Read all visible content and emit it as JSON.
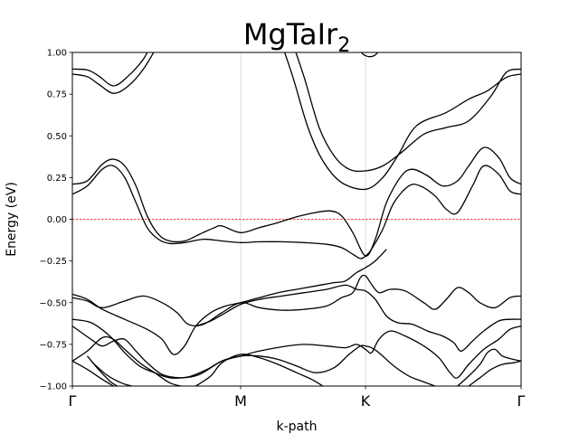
{
  "chart_data": {
    "type": "line",
    "title": "MgTaIr",
    "title_subscript": "2",
    "xlabel": "k-path",
    "ylabel": "Energy (eV)",
    "ylim": [
      -1.0,
      1.0
    ],
    "xlim": [
      0,
      6
    ],
    "yticks": [
      -1.0,
      -0.75,
      -0.5,
      -0.25,
      0.0,
      0.25,
      0.5,
      0.75,
      1.0
    ],
    "ytick_labels": [
      "−1.00",
      "−0.75",
      "−0.50",
      "−0.25",
      "0.00",
      "0.25",
      "0.50",
      "0.75",
      "1.00"
    ],
    "kpoints": [
      {
        "label": "Γ",
        "x": 0
      },
      {
        "label": "M",
        "x": 2.25
      },
      {
        "label": "K",
        "x": 3.92
      },
      {
        "label": "Γ",
        "x": 6
      }
    ],
    "fermi_level": 0.0,
    "grid": false,
    "line_color": "#000000",
    "fermi_color": "#ff0000",
    "vline_color": "#d0d0d0",
    "bands": [
      {
        "points": [
          [
            0,
            0.9
          ],
          [
            0.2,
            0.895
          ],
          [
            0.35,
            0.86
          ],
          [
            0.55,
            0.8
          ],
          [
            0.75,
            0.86
          ],
          [
            0.95,
            0.96
          ],
          [
            1.05,
            1.05
          ]
        ]
      },
      {
        "points": [
          [
            0,
            0.87
          ],
          [
            0.2,
            0.855
          ],
          [
            0.35,
            0.81
          ],
          [
            0.55,
            0.755
          ],
          [
            0.75,
            0.8
          ],
          [
            0.95,
            0.9
          ],
          [
            1.15,
            1.05
          ]
        ]
      },
      {
        "points": [
          [
            2.95,
            1.05
          ],
          [
            3.1,
            0.85
          ],
          [
            3.3,
            0.55
          ],
          [
            3.5,
            0.38
          ],
          [
            3.7,
            0.3
          ],
          [
            3.92,
            0.29
          ],
          [
            4.15,
            0.32
          ],
          [
            4.4,
            0.4
          ],
          [
            4.7,
            0.51
          ],
          [
            5.0,
            0.55
          ],
          [
            5.3,
            0.59
          ],
          [
            5.6,
            0.74
          ],
          [
            5.8,
            0.88
          ],
          [
            6,
            0.9
          ]
        ]
      },
      {
        "points": [
          [
            2.8,
            1.05
          ],
          [
            2.95,
            0.85
          ],
          [
            3.15,
            0.55
          ],
          [
            3.35,
            0.35
          ],
          [
            3.6,
            0.22
          ],
          [
            3.92,
            0.18
          ],
          [
            4.15,
            0.25
          ],
          [
            4.35,
            0.38
          ],
          [
            4.6,
            0.56
          ],
          [
            5.0,
            0.64
          ],
          [
            5.3,
            0.72
          ],
          [
            5.55,
            0.77
          ],
          [
            5.8,
            0.85
          ],
          [
            6,
            0.87
          ]
        ]
      },
      {
        "points": [
          [
            3.8,
            1.03
          ],
          [
            3.92,
            0.98
          ],
          [
            4.05,
            0.985
          ],
          [
            4.15,
            1.05
          ]
        ]
      },
      {
        "points": [
          [
            0,
            0.21
          ],
          [
            0.2,
            0.23
          ],
          [
            0.4,
            0.33
          ],
          [
            0.55,
            0.36
          ],
          [
            0.7,
            0.32
          ],
          [
            0.85,
            0.2
          ],
          [
            1.0,
            0.02
          ],
          [
            1.15,
            -0.09
          ],
          [
            1.3,
            -0.13
          ],
          [
            1.5,
            -0.13
          ],
          [
            1.7,
            -0.09
          ],
          [
            1.9,
            -0.05
          ],
          [
            2.0,
            -0.04
          ],
          [
            2.25,
            -0.08
          ],
          [
            2.5,
            -0.05
          ],
          [
            2.75,
            -0.02
          ],
          [
            3.0,
            0.015
          ],
          [
            3.25,
            0.04
          ],
          [
            3.45,
            0.05
          ],
          [
            3.6,
            0.02
          ],
          [
            3.75,
            -0.08
          ],
          [
            3.92,
            -0.22
          ],
          [
            4.05,
            -0.12
          ],
          [
            4.2,
            0.1
          ],
          [
            4.4,
            0.26
          ],
          [
            4.55,
            0.3
          ],
          [
            4.75,
            0.26
          ],
          [
            4.95,
            0.2
          ],
          [
            5.15,
            0.23
          ],
          [
            5.3,
            0.32
          ],
          [
            5.5,
            0.43
          ],
          [
            5.7,
            0.37
          ],
          [
            5.85,
            0.25
          ],
          [
            6,
            0.21
          ]
        ]
      },
      {
        "points": [
          [
            0,
            0.15
          ],
          [
            0.2,
            0.2
          ],
          [
            0.4,
            0.3
          ],
          [
            0.55,
            0.32
          ],
          [
            0.7,
            0.25
          ],
          [
            0.85,
            0.1
          ],
          [
            1.0,
            -0.05
          ],
          [
            1.15,
            -0.12
          ],
          [
            1.3,
            -0.145
          ],
          [
            1.5,
            -0.14
          ],
          [
            1.75,
            -0.12
          ],
          [
            2.0,
            -0.13
          ],
          [
            2.25,
            -0.14
          ],
          [
            2.5,
            -0.135
          ],
          [
            2.8,
            -0.135
          ],
          [
            3.1,
            -0.14
          ],
          [
            3.4,
            -0.15
          ],
          [
            3.6,
            -0.17
          ],
          [
            3.75,
            -0.21
          ],
          [
            3.85,
            -0.235
          ],
          [
            3.92,
            -0.22
          ],
          [
            4.0,
            -0.18
          ],
          [
            4.15,
            -0.06
          ],
          [
            4.3,
            0.1
          ],
          [
            4.5,
            0.2
          ],
          [
            4.65,
            0.2
          ],
          [
            4.85,
            0.14
          ],
          [
            5.0,
            0.06
          ],
          [
            5.15,
            0.04
          ],
          [
            5.35,
            0.2
          ],
          [
            5.5,
            0.32
          ],
          [
            5.7,
            0.27
          ],
          [
            5.85,
            0.17
          ],
          [
            6,
            0.15
          ]
        ]
      },
      {
        "points": [
          [
            0,
            -0.45
          ],
          [
            0.2,
            -0.48
          ],
          [
            0.4,
            -0.54
          ],
          [
            0.7,
            -0.6
          ],
          [
            1.0,
            -0.66
          ],
          [
            1.2,
            -0.72
          ],
          [
            1.35,
            -0.81
          ],
          [
            1.5,
            -0.76
          ],
          [
            1.65,
            -0.64
          ],
          [
            1.85,
            -0.56
          ],
          [
            2.05,
            -0.52
          ],
          [
            2.25,
            -0.5
          ],
          [
            2.5,
            -0.47
          ],
          [
            2.75,
            -0.44
          ],
          [
            3.0,
            -0.42
          ],
          [
            3.25,
            -0.4
          ],
          [
            3.5,
            -0.38
          ],
          [
            3.65,
            -0.37
          ],
          [
            3.8,
            -0.32
          ],
          [
            3.92,
            -0.29
          ],
          [
            4.05,
            -0.25
          ],
          [
            4.2,
            -0.18
          ]
        ]
      },
      {
        "points": [
          [
            0,
            -0.47
          ],
          [
            0.2,
            -0.49
          ],
          [
            0.4,
            -0.53
          ],
          [
            0.7,
            -0.49
          ],
          [
            0.95,
            -0.46
          ],
          [
            1.2,
            -0.5
          ],
          [
            1.4,
            -0.56
          ],
          [
            1.55,
            -0.63
          ],
          [
            1.75,
            -0.63
          ],
          [
            2.0,
            -0.56
          ],
          [
            2.25,
            -0.5
          ],
          [
            2.5,
            -0.53
          ],
          [
            2.8,
            -0.545
          ],
          [
            3.1,
            -0.54
          ],
          [
            3.4,
            -0.52
          ],
          [
            3.6,
            -0.47
          ],
          [
            3.75,
            -0.44
          ],
          [
            3.85,
            -0.35
          ],
          [
            3.92,
            -0.34
          ],
          [
            4.0,
            -0.39
          ],
          [
            4.1,
            -0.44
          ],
          [
            4.25,
            -0.42
          ],
          [
            4.45,
            -0.43
          ],
          [
            4.7,
            -0.5
          ],
          [
            4.85,
            -0.54
          ],
          [
            5.0,
            -0.48
          ],
          [
            5.15,
            -0.41
          ],
          [
            5.3,
            -0.44
          ],
          [
            5.45,
            -0.5
          ],
          [
            5.65,
            -0.53
          ],
          [
            5.85,
            -0.47
          ],
          [
            6,
            -0.46
          ]
        ]
      },
      {
        "points": [
          [
            1.65,
            -0.64
          ],
          [
            1.85,
            -0.61
          ],
          [
            2.05,
            -0.56
          ],
          [
            2.25,
            -0.51
          ],
          [
            2.5,
            -0.48
          ],
          [
            2.8,
            -0.46
          ],
          [
            3.1,
            -0.44
          ],
          [
            3.4,
            -0.42
          ],
          [
            3.65,
            -0.395
          ],
          [
            3.8,
            -0.42
          ],
          [
            3.92,
            -0.43
          ],
          [
            4.05,
            -0.48
          ],
          [
            4.2,
            -0.58
          ],
          [
            4.35,
            -0.62
          ],
          [
            4.55,
            -0.63
          ],
          [
            4.75,
            -0.67
          ],
          [
            4.95,
            -0.7
          ],
          [
            5.1,
            -0.74
          ],
          [
            5.2,
            -0.79
          ],
          [
            5.35,
            -0.73
          ],
          [
            5.5,
            -0.67
          ],
          [
            5.7,
            -0.61
          ],
          [
            5.85,
            -0.6
          ],
          [
            6,
            -0.6
          ]
        ]
      },
      {
        "points": [
          [
            0,
            -0.6
          ],
          [
            0.25,
            -0.62
          ],
          [
            0.5,
            -0.7
          ],
          [
            0.7,
            -0.8
          ],
          [
            0.9,
            -0.88
          ],
          [
            1.1,
            -0.92
          ],
          [
            1.3,
            -0.95
          ],
          [
            1.55,
            -0.945
          ],
          [
            1.8,
            -0.9
          ],
          [
            2.0,
            -0.85
          ],
          [
            2.25,
            -0.82
          ],
          [
            2.5,
            -0.79
          ],
          [
            2.8,
            -0.765
          ],
          [
            3.1,
            -0.75
          ],
          [
            3.4,
            -0.76
          ],
          [
            3.65,
            -0.77
          ],
          [
            3.8,
            -0.75
          ],
          [
            3.92,
            -0.78
          ],
          [
            4.0,
            -0.8
          ],
          [
            4.1,
            -0.72
          ],
          [
            4.25,
            -0.67
          ],
          [
            4.45,
            -0.7
          ],
          [
            4.7,
            -0.76
          ],
          [
            4.9,
            -0.83
          ],
          [
            5.05,
            -0.92
          ],
          [
            5.15,
            -0.95
          ],
          [
            5.3,
            -0.87
          ],
          [
            5.5,
            -0.78
          ],
          [
            5.7,
            -0.72
          ],
          [
            5.85,
            -0.66
          ],
          [
            6,
            -0.64
          ]
        ]
      },
      {
        "points": [
          [
            0,
            -0.64
          ],
          [
            0.25,
            -0.72
          ],
          [
            0.4,
            -0.76
          ],
          [
            0.55,
            -0.73
          ],
          [
            0.7,
            -0.72
          ],
          [
            0.85,
            -0.79
          ],
          [
            1.0,
            -0.86
          ],
          [
            1.2,
            -0.93
          ],
          [
            1.45,
            -0.95
          ],
          [
            1.7,
            -0.93
          ],
          [
            2.0,
            -0.85
          ],
          [
            2.25,
            -0.82
          ],
          [
            2.5,
            -0.82
          ],
          [
            2.75,
            -0.84
          ],
          [
            3.0,
            -0.88
          ],
          [
            3.25,
            -0.92
          ],
          [
            3.5,
            -0.89
          ],
          [
            3.7,
            -0.81
          ],
          [
            3.85,
            -0.76
          ],
          [
            3.92,
            -0.76
          ],
          [
            4.0,
            -0.77
          ],
          [
            4.1,
            -0.8
          ],
          [
            4.3,
            -0.88
          ],
          [
            4.5,
            -0.94
          ],
          [
            4.7,
            -0.975
          ],
          [
            4.85,
            -1.0
          ]
        ]
      },
      {
        "points": [
          [
            0,
            -0.85
          ],
          [
            0.2,
            -0.79
          ],
          [
            0.4,
            -0.71
          ],
          [
            0.55,
            -0.72
          ],
          [
            0.7,
            -0.78
          ],
          [
            0.9,
            -0.86
          ],
          [
            1.1,
            -0.92
          ],
          [
            1.3,
            -0.98
          ],
          [
            1.45,
            -1.0
          ]
        ]
      },
      {
        "points": [
          [
            0,
            -0.85
          ],
          [
            0.2,
            -0.9
          ],
          [
            0.4,
            -0.96
          ],
          [
            0.55,
            -1.0
          ]
        ]
      },
      {
        "points": [
          [
            0.2,
            -0.82
          ],
          [
            0.35,
            -0.9
          ],
          [
            0.5,
            -0.97
          ],
          [
            0.6,
            -1.0
          ]
        ]
      },
      {
        "points": [
          [
            0.25,
            -0.85
          ],
          [
            0.45,
            -0.93
          ],
          [
            0.65,
            -0.98
          ],
          [
            0.8,
            -1.0
          ]
        ]
      },
      {
        "points": [
          [
            1.65,
            -1.0
          ],
          [
            1.85,
            -0.94
          ],
          [
            2.0,
            -0.86
          ],
          [
            2.25,
            -0.81
          ],
          [
            2.5,
            -0.83
          ],
          [
            2.75,
            -0.87
          ],
          [
            3.0,
            -0.92
          ],
          [
            3.2,
            -0.96
          ],
          [
            3.35,
            -1.0
          ]
        ]
      },
      {
        "points": [
          [
            5.15,
            -1.0
          ],
          [
            5.3,
            -0.94
          ],
          [
            5.45,
            -0.87
          ],
          [
            5.55,
            -0.8
          ],
          [
            5.65,
            -0.78
          ],
          [
            5.75,
            -0.82
          ],
          [
            5.9,
            -0.84
          ],
          [
            6,
            -0.85
          ]
        ]
      },
      {
        "points": [
          [
            5.3,
            -1.0
          ],
          [
            5.45,
            -0.95
          ],
          [
            5.6,
            -0.9
          ],
          [
            5.75,
            -0.87
          ],
          [
            5.9,
            -0.86
          ],
          [
            6,
            -0.85
          ]
        ]
      }
    ]
  }
}
